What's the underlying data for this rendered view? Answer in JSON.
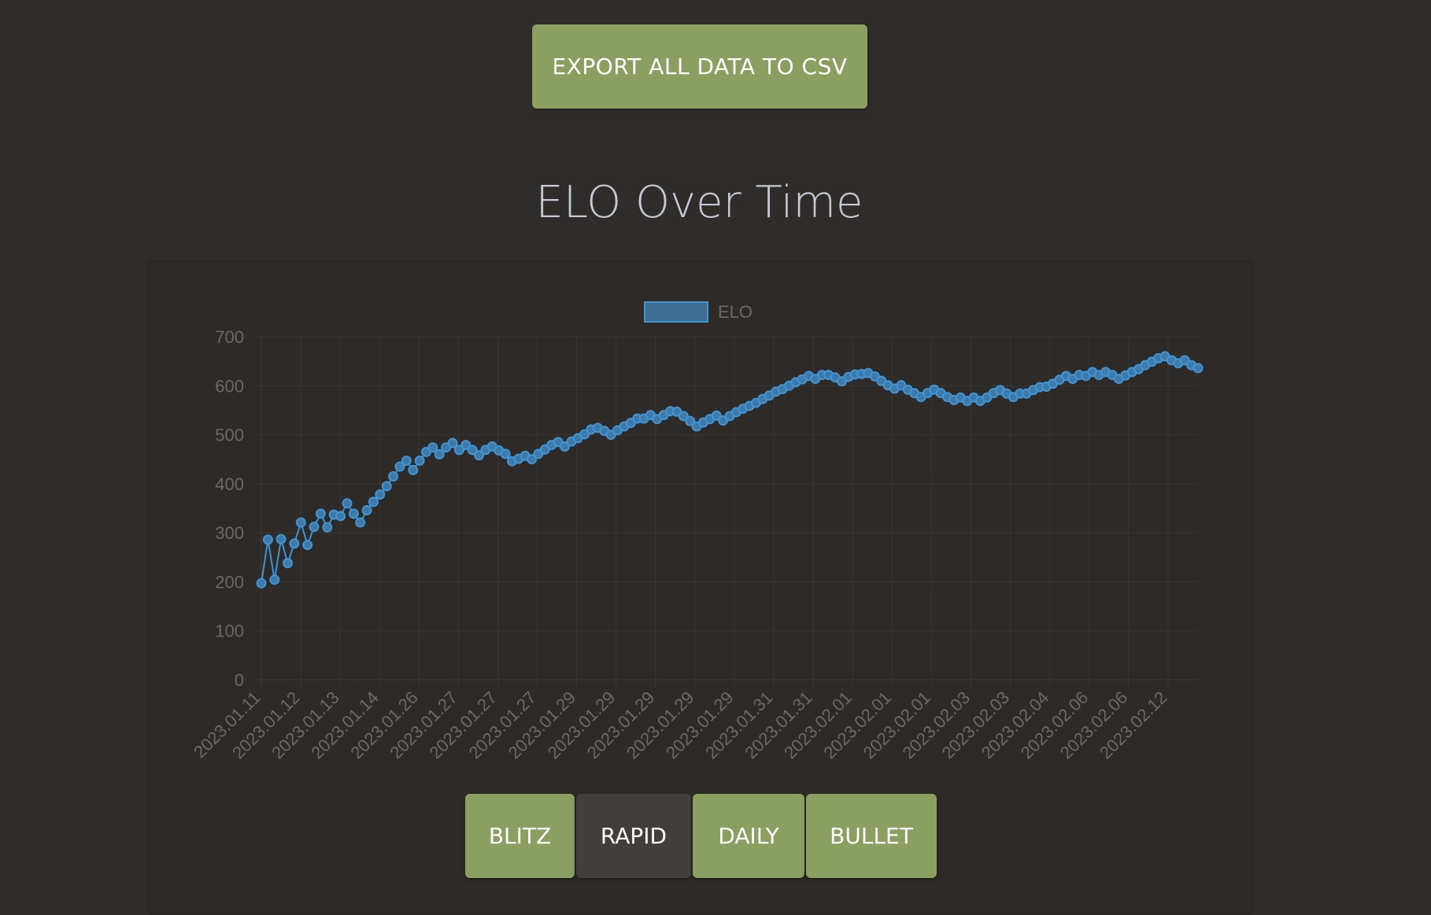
{
  "toolbar": {
    "export_label": "EXPORT ALL DATA TO CSV"
  },
  "page": {
    "title": "ELO Over Time"
  },
  "tabs": [
    {
      "label": "BLITZ",
      "active": false
    },
    {
      "label": "RAPID",
      "active": true
    },
    {
      "label": "DAILY",
      "active": false
    },
    {
      "label": "BULLET",
      "active": false
    }
  ],
  "colors": {
    "background": "#302c29",
    "button": "#8b9f61",
    "button_active": "#423e3b",
    "line": "#3f95d5",
    "title": "#c6cad6",
    "grid": "#3a3633",
    "tick": "#6b6966"
  },
  "chart_data": {
    "type": "line",
    "title": "",
    "xlabel": "",
    "ylabel": "",
    "legend": {
      "position": "top-center",
      "entries": [
        "ELO"
      ]
    },
    "grid": true,
    "ylim": [
      0,
      700
    ],
    "yticks": [
      0,
      100,
      200,
      300,
      400,
      500,
      600,
      700
    ],
    "xtick_labels": [
      "2023.01.11",
      "2023.01.12",
      "2023.01.13",
      "2023.01.14",
      "2023.01.26",
      "2023.01.27",
      "2023.01.27",
      "2023.01.27",
      "2023.01.29",
      "2023.01.29",
      "2023.01.29",
      "2023.01.29",
      "2023.01.29",
      "2023.01.31",
      "2023.01.31",
      "2023.02.01",
      "2023.02.01",
      "2023.02.01",
      "2023.02.03",
      "2023.02.03",
      "2023.02.04",
      "2023.02.06",
      "2023.02.06",
      "2023.02.12"
    ],
    "series": [
      {
        "name": "ELO",
        "values": [
          197,
          286,
          204,
          287,
          238,
          278,
          321,
          275,
          312,
          339,
          311,
          337,
          334,
          360,
          339,
          321,
          346,
          363,
          378,
          395,
          415,
          435,
          447,
          428,
          447,
          465,
          474,
          460,
          474,
          483,
          469,
          479,
          469,
          458,
          469,
          476,
          468,
          461,
          446,
          451,
          457,
          450,
          461,
          470,
          479,
          485,
          476,
          486,
          493,
          501,
          511,
          514,
          508,
          500,
          509,
          517,
          524,
          533,
          533,
          540,
          532,
          540,
          548,
          547,
          538,
          528,
          517,
          525,
          532,
          539,
          529,
          538,
          546,
          553,
          559,
          565,
          573,
          580,
          588,
          593,
          600,
          607,
          613,
          620,
          614,
          622,
          622,
          617,
          609,
          618,
          623,
          624,
          626,
          619,
          610,
          601,
          594,
          601,
          592,
          585,
          577,
          585,
          592,
          585,
          577,
          571,
          576,
          569,
          576,
          569,
          576,
          585,
          591,
          584,
          577,
          584,
          584,
          591,
          597,
          598,
          604,
          612,
          620,
          614,
          622,
          620,
          628,
          622,
          628,
          622,
          614,
          621,
          628,
          634,
          642,
          649,
          656,
          660,
          652,
          646,
          652,
          642,
          636
        ]
      }
    ]
  }
}
